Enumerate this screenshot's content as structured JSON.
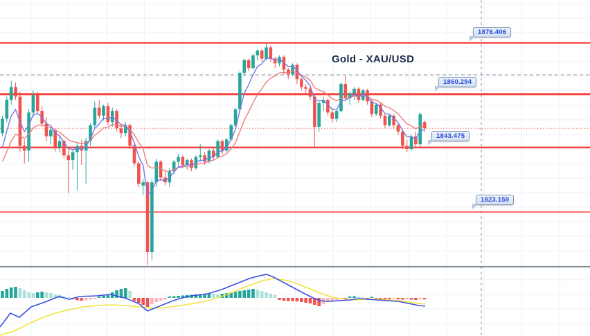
{
  "title": "Gold - XAU/USD",
  "levels": [
    {
      "label": "1876.406",
      "value": 1876.406
    },
    {
      "label": "1860.294",
      "value": 1860.294
    },
    {
      "label": "1843.475",
      "value": 1843.475
    },
    {
      "label": "1823.159",
      "value": 1823.159
    }
  ],
  "current_price": 1849.5,
  "colors": {
    "level_line": "#f5403d",
    "up_candle": "#26a69a",
    "down_candle": "#ef5350",
    "fast_ma": "#7678e0",
    "slow_ma": "#ef7b7b",
    "macd_line": "#3d4fe0",
    "signal_line": "#f2e33c",
    "hist_pos_dark": "#26a69a",
    "hist_pos_light": "#aee0da",
    "hist_neg_dark": "#ef5350",
    "hist_neg_light": "#f6b7bc",
    "grid": "#edf1f8",
    "dashed_gray": "#a0a7b1",
    "separator": "#3b4754",
    "label_text": "#2b49d8",
    "title_text": "#1c2b4a"
  },
  "chart_data": {
    "type": "candlestick",
    "title": "Gold - XAU/USD",
    "instrument": "Gold",
    "symbol": "XAU/USD",
    "price_axis": {
      "min": 1805,
      "max": 1880
    },
    "support_resistance_levels": [
      1876.406,
      1860.294,
      1843.475,
      1823.159
    ],
    "current_price": 1849.5,
    "candles": [
      [
        1848,
        1853.5,
        1847,
        1852.5
      ],
      [
        1852.5,
        1859.5,
        1851.5,
        1858.5
      ],
      [
        1858.5,
        1864.5,
        1857,
        1862.5
      ],
      [
        1862.5,
        1864,
        1858.5,
        1859.5
      ],
      [
        1859.5,
        1861,
        1842,
        1844
      ],
      [
        1844,
        1846,
        1838.5,
        1842.5
      ],
      [
        1842.5,
        1855.5,
        1839,
        1854.5
      ],
      [
        1854.5,
        1861.5,
        1853,
        1860
      ],
      [
        1860,
        1861,
        1854,
        1855
      ],
      [
        1855,
        1856.5,
        1850,
        1851
      ],
      [
        1851,
        1853,
        1845.5,
        1847
      ],
      [
        1847,
        1850,
        1844.5,
        1849
      ],
      [
        1849,
        1849.5,
        1842,
        1843.5
      ],
      [
        1843.5,
        1847,
        1842,
        1845.5
      ],
      [
        1845.5,
        1846,
        1840,
        1841
      ],
      [
        1841,
        1843.5,
        1829,
        1839.5
      ],
      [
        1839.5,
        1843,
        1836.5,
        1842
      ],
      [
        1842,
        1845,
        1830,
        1844
      ],
      [
        1844,
        1846,
        1838,
        1842.5
      ],
      [
        1842.5,
        1846.5,
        1832,
        1845.5
      ],
      [
        1845.5,
        1851,
        1844,
        1850.5
      ],
      [
        1850.5,
        1858,
        1849.5,
        1856
      ],
      [
        1856,
        1858.5,
        1852.5,
        1853.5
      ],
      [
        1853.5,
        1857,
        1852,
        1856.5
      ],
      [
        1856.5,
        1857.5,
        1850.5,
        1851.5
      ],
      [
        1851.5,
        1856,
        1850,
        1855
      ],
      [
        1855,
        1855.5,
        1848.5,
        1849.5
      ],
      [
        1849.5,
        1851,
        1846.5,
        1848
      ],
      [
        1848,
        1851.5,
        1847,
        1850.5
      ],
      [
        1850.5,
        1851,
        1843,
        1844
      ],
      [
        1844,
        1845,
        1837.5,
        1838.5
      ],
      [
        1838.5,
        1839,
        1831,
        1832
      ],
      [
        1831.5,
        1833.5,
        1828.5,
        1832.5
      ],
      [
        1832.5,
        1833,
        1806.5,
        1810.5
      ],
      [
        1810.5,
        1833.5,
        1808,
        1832.5
      ],
      [
        1832.5,
        1840,
        1831,
        1839
      ],
      [
        1839,
        1839.5,
        1833,
        1834
      ],
      [
        1834,
        1836,
        1831.5,
        1832.5
      ],
      [
        1832.5,
        1837,
        1831,
        1836
      ],
      [
        1836,
        1839.5,
        1835,
        1839
      ],
      [
        1839,
        1841.5,
        1837.5,
        1840.5
      ],
      [
        1840.5,
        1841,
        1837,
        1838
      ],
      [
        1838,
        1840,
        1836.5,
        1839.5
      ],
      [
        1839.5,
        1840,
        1836,
        1837
      ],
      [
        1837,
        1841,
        1836.5,
        1840.5
      ],
      [
        1840.5,
        1844.5,
        1839,
        1841
      ],
      [
        1841,
        1842,
        1838,
        1839
      ],
      [
        1839,
        1843,
        1838.5,
        1842.5
      ],
      [
        1842.5,
        1843.5,
        1839.5,
        1840.5
      ],
      [
        1840.5,
        1846,
        1840,
        1845.5
      ],
      [
        1845.5,
        1846,
        1841.5,
        1842.5
      ],
      [
        1842.5,
        1846.5,
        1842,
        1846
      ],
      [
        1846,
        1851,
        1845.5,
        1850.5
      ],
      [
        1850.5,
        1856,
        1850,
        1855.5
      ],
      [
        1855.5,
        1867.5,
        1854.5,
        1867
      ],
      [
        1867,
        1871.5,
        1866,
        1871
      ],
      [
        1871,
        1871.5,
        1867.5,
        1868.5
      ],
      [
        1868.5,
        1873,
        1868,
        1872.5
      ],
      [
        1872.5,
        1874.5,
        1871,
        1874
      ],
      [
        1874,
        1874.5,
        1870.5,
        1871.5
      ],
      [
        1871.5,
        1876,
        1871,
        1875
      ],
      [
        1875,
        1875.5,
        1870.5,
        1871.5
      ],
      [
        1871.5,
        1872,
        1868.5,
        1870
      ],
      [
        1870,
        1872.5,
        1869,
        1872
      ],
      [
        1872,
        1872.5,
        1866.5,
        1868
      ],
      [
        1868,
        1868.5,
        1865,
        1866.5
      ],
      [
        1866.5,
        1870,
        1866,
        1869.5
      ],
      [
        1869.5,
        1870,
        1863.5,
        1865
      ],
      [
        1865,
        1865.5,
        1861.5,
        1862.5
      ],
      [
        1862.5,
        1863.5,
        1860,
        1862
      ],
      [
        1862,
        1862.5,
        1858.5,
        1859.5
      ],
      [
        1859.5,
        1860,
        1843.5,
        1850
      ],
      [
        1850,
        1858,
        1848.5,
        1857.5
      ],
      [
        1857.5,
        1859.5,
        1855,
        1858.5
      ],
      [
        1858.5,
        1859,
        1853.5,
        1854.5
      ],
      [
        1854.5,
        1856,
        1851.5,
        1852.5
      ],
      [
        1852.5,
        1855.5,
        1851.5,
        1855
      ],
      [
        1855,
        1864,
        1854.5,
        1863.5
      ],
      [
        1863.5,
        1866,
        1858,
        1859
      ],
      [
        1859,
        1861,
        1857,
        1860.5
      ],
      [
        1860.5,
        1862.5,
        1858.5,
        1862
      ],
      [
        1862,
        1862.5,
        1857.5,
        1858.5
      ],
      [
        1858.5,
        1862,
        1858,
        1861.5
      ],
      [
        1861.5,
        1862,
        1857,
        1858
      ],
      [
        1858,
        1858.5,
        1853,
        1854
      ],
      [
        1854,
        1857.5,
        1853.5,
        1857
      ],
      [
        1857,
        1857.5,
        1852.5,
        1853.5
      ],
      [
        1853.5,
        1854,
        1849.5,
        1850.5
      ],
      [
        1850.5,
        1854,
        1850,
        1853.5
      ],
      [
        1853.5,
        1854,
        1849.5,
        1850.5
      ],
      [
        1850.5,
        1851,
        1847.5,
        1848.5
      ],
      [
        1848.5,
        1849,
        1843,
        1844
      ],
      [
        1844,
        1846,
        1842,
        1843
      ],
      [
        1843,
        1847.5,
        1842.5,
        1847
      ],
      [
        1847,
        1848.5,
        1843.5,
        1844.5
      ],
      [
        1844.5,
        1854.5,
        1843.5,
        1854
      ],
      [
        1851.5,
        1852,
        1848.5,
        1849.5
      ]
    ],
    "overlays": [
      {
        "name": "fast-ema",
        "color_role": "fast_ma"
      },
      {
        "name": "slow-ema",
        "color_role": "slow_ma"
      }
    ],
    "indicator": {
      "type": "macd",
      "zero_baseline": 0,
      "histogram": [
        10,
        13,
        15,
        16,
        14,
        11,
        8,
        7,
        8,
        9,
        8,
        7,
        5,
        4,
        2.5,
        1,
        -2,
        -3.5,
        -4,
        -3.5,
        -2.5,
        -1.5,
        2,
        3,
        5,
        8,
        11,
        13,
        14,
        10,
        -4,
        -7,
        -10,
        -13,
        -9,
        -6,
        -4,
        -2.5,
        2,
        2.5,
        3,
        3.5,
        4,
        4.5,
        5,
        5.5,
        6,
        7,
        6,
        5,
        6,
        7,
        8,
        9,
        10,
        11,
        12,
        13,
        12,
        10,
        8,
        6,
        4,
        -3,
        -4,
        -4.5,
        -4.5,
        -5,
        -6,
        -7,
        -8,
        -10,
        -12,
        -9,
        -6,
        -4,
        -3,
        -2,
        -2,
        2,
        2.5,
        1.5,
        1,
        -0.5,
        1.5,
        -1,
        -1.5,
        -2,
        -2,
        -1.5,
        -2,
        -2.5,
        -2,
        -2.5,
        -3,
        -2,
        -2
      ],
      "macd_line": [
        [
          0,
          -42
        ],
        [
          15,
          -22
        ],
        [
          28,
          -28
        ],
        [
          45,
          -13
        ],
        [
          65,
          -6
        ],
        [
          85,
          2
        ],
        [
          100,
          -2
        ],
        [
          115,
          2
        ],
        [
          140,
          3
        ],
        [
          160,
          5
        ],
        [
          180,
          0
        ],
        [
          200,
          -8
        ],
        [
          213,
          -19
        ],
        [
          230,
          -12
        ],
        [
          250,
          -4
        ],
        [
          270,
          2
        ],
        [
          300,
          6
        ],
        [
          320,
          12
        ],
        [
          340,
          20
        ],
        [
          360,
          28
        ],
        [
          375,
          32
        ],
        [
          385,
          34
        ],
        [
          395,
          30
        ],
        [
          410,
          22
        ],
        [
          425,
          14
        ],
        [
          440,
          6
        ],
        [
          452,
          0
        ],
        [
          462,
          -4
        ],
        [
          475,
          -5
        ],
        [
          490,
          -4
        ],
        [
          505,
          -3
        ],
        [
          518,
          -1
        ],
        [
          530,
          -2
        ],
        [
          545,
          -3
        ],
        [
          560,
          -4
        ],
        [
          575,
          -5
        ],
        [
          590,
          -8
        ],
        [
          605,
          -11
        ],
        [
          614,
          -12
        ]
      ],
      "signal_line": [
        [
          0,
          -54
        ],
        [
          20,
          -48
        ],
        [
          40,
          -38
        ],
        [
          60,
          -29
        ],
        [
          80,
          -22
        ],
        [
          100,
          -17
        ],
        [
          120,
          -13
        ],
        [
          140,
          -11
        ],
        [
          160,
          -10
        ],
        [
          180,
          -11
        ],
        [
          200,
          -13
        ],
        [
          220,
          -15
        ],
        [
          240,
          -14
        ],
        [
          260,
          -11
        ],
        [
          280,
          -8
        ],
        [
          300,
          -4
        ],
        [
          320,
          2
        ],
        [
          340,
          10
        ],
        [
          360,
          18
        ],
        [
          380,
          25
        ],
        [
          395,
          28
        ],
        [
          410,
          26
        ],
        [
          425,
          22
        ],
        [
          440,
          16
        ],
        [
          455,
          10
        ],
        [
          470,
          4
        ],
        [
          485,
          0
        ],
        [
          500,
          -2
        ],
        [
          515,
          -3
        ],
        [
          530,
          -2
        ],
        [
          545,
          -2
        ],
        [
          560,
          -3
        ],
        [
          575,
          -4
        ],
        [
          590,
          -6
        ],
        [
          605,
          -8
        ],
        [
          614,
          -9
        ]
      ]
    }
  }
}
